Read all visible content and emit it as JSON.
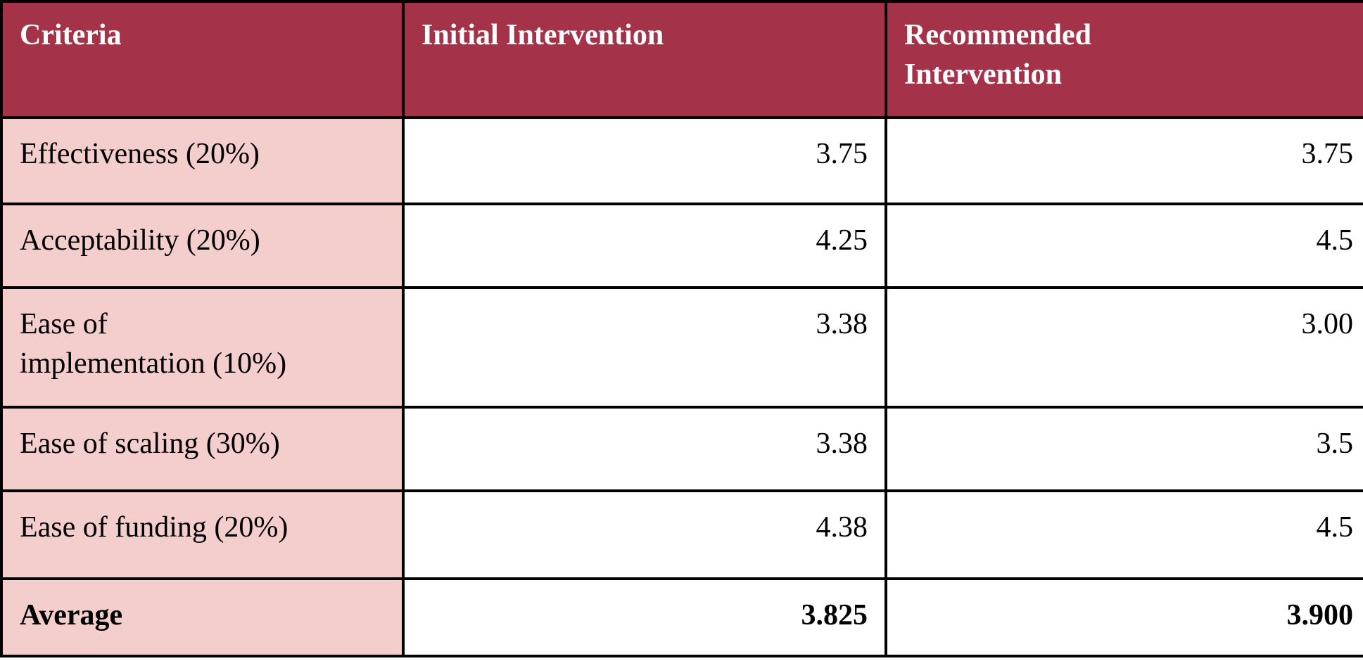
{
  "table": {
    "colors": {
      "header_bg": "#A43349",
      "header_text": "#FFFFFF",
      "label_bg": "#F4CDCD",
      "value_bg": "#FFFFFF",
      "border": "#000000",
      "text": "#000000"
    },
    "headers": [
      {
        "label": "Criteria"
      },
      {
        "label": "Initial Intervention"
      },
      {
        "label": "Recommended\nIntervention"
      }
    ],
    "rows": [
      {
        "criteria": "Effectiveness (20%)",
        "initial": "3.75",
        "recommended": "3.75"
      },
      {
        "criteria": "Acceptability (20%)",
        "initial": "4.25",
        "recommended": "4.5"
      },
      {
        "criteria": "Ease of\nimplementation (10%)",
        "initial": "3.38",
        "recommended": "3.00"
      },
      {
        "criteria": "Ease of scaling (30%)",
        "initial": "3.38",
        "recommended": "3.5"
      },
      {
        "criteria": "Ease of funding (20%)",
        "initial": "4.38",
        "recommended": "4.5"
      },
      {
        "criteria": "Average",
        "initial": "3.825",
        "recommended": "3.900"
      }
    ]
  }
}
